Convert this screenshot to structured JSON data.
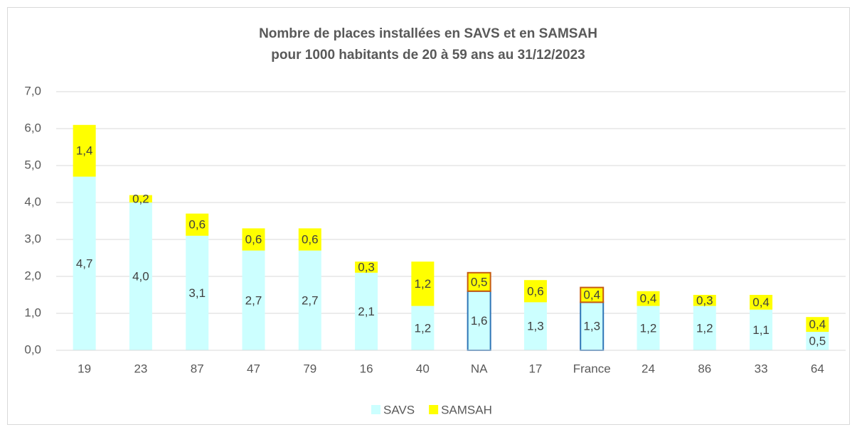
{
  "chart_data": {
    "type": "stacked_bar",
    "title": [
      "Nombre de places installées en SAVS et en SAMSAH",
      "pour 1000 habitants de 20 à 59 ans au 31/12/2023"
    ],
    "categories": [
      "19",
      "23",
      "87",
      "47",
      "79",
      "16",
      "40",
      "NA",
      "17",
      "France",
      "24",
      "86",
      "33",
      "64"
    ],
    "highlighted": [
      "NA",
      "France"
    ],
    "series": [
      {
        "name": "SAVS",
        "color": "#ccffff",
        "edge_color": "#2e75b6",
        "values": [
          4.7,
          4.0,
          3.1,
          2.7,
          2.7,
          2.1,
          1.2,
          1.6,
          1.3,
          1.3,
          1.2,
          1.2,
          1.1,
          0.5
        ],
        "value_labels": [
          "4,7",
          "4,0",
          "3,1",
          "2,7",
          "2,7",
          "2,1",
          "1,2",
          "1,6",
          "1,3",
          "1,3",
          "1,2",
          "1,2",
          "1,1",
          "0,5"
        ]
      },
      {
        "name": "SAMSAH",
        "color": "#ffff00",
        "edge_color": "#c55a11",
        "values": [
          1.4,
          0.2,
          0.6,
          0.6,
          0.6,
          0.3,
          1.2,
          0.5,
          0.6,
          0.4,
          0.4,
          0.3,
          0.4,
          0.4
        ],
        "value_labels": [
          "1,4",
          "0,2",
          "0,6",
          "0,6",
          "0,6",
          "0,3",
          "1,2",
          "0,5",
          "0,6",
          "0,4",
          "0,4",
          "0,3",
          "0,4",
          "0,4"
        ]
      }
    ],
    "ylim": [
      0,
      7
    ],
    "yticks": [
      {
        "value": 0,
        "label": "0,0"
      },
      {
        "value": 1,
        "label": "1,0"
      },
      {
        "value": 2,
        "label": "2,0"
      },
      {
        "value": 3,
        "label": "3,0"
      },
      {
        "value": 4,
        "label": "4,0"
      },
      {
        "value": 5,
        "label": "5,0"
      },
      {
        "value": 6,
        "label": "6,0"
      },
      {
        "value": 7,
        "label": "7,0"
      }
    ],
    "grid": true,
    "legend": "bottom"
  }
}
